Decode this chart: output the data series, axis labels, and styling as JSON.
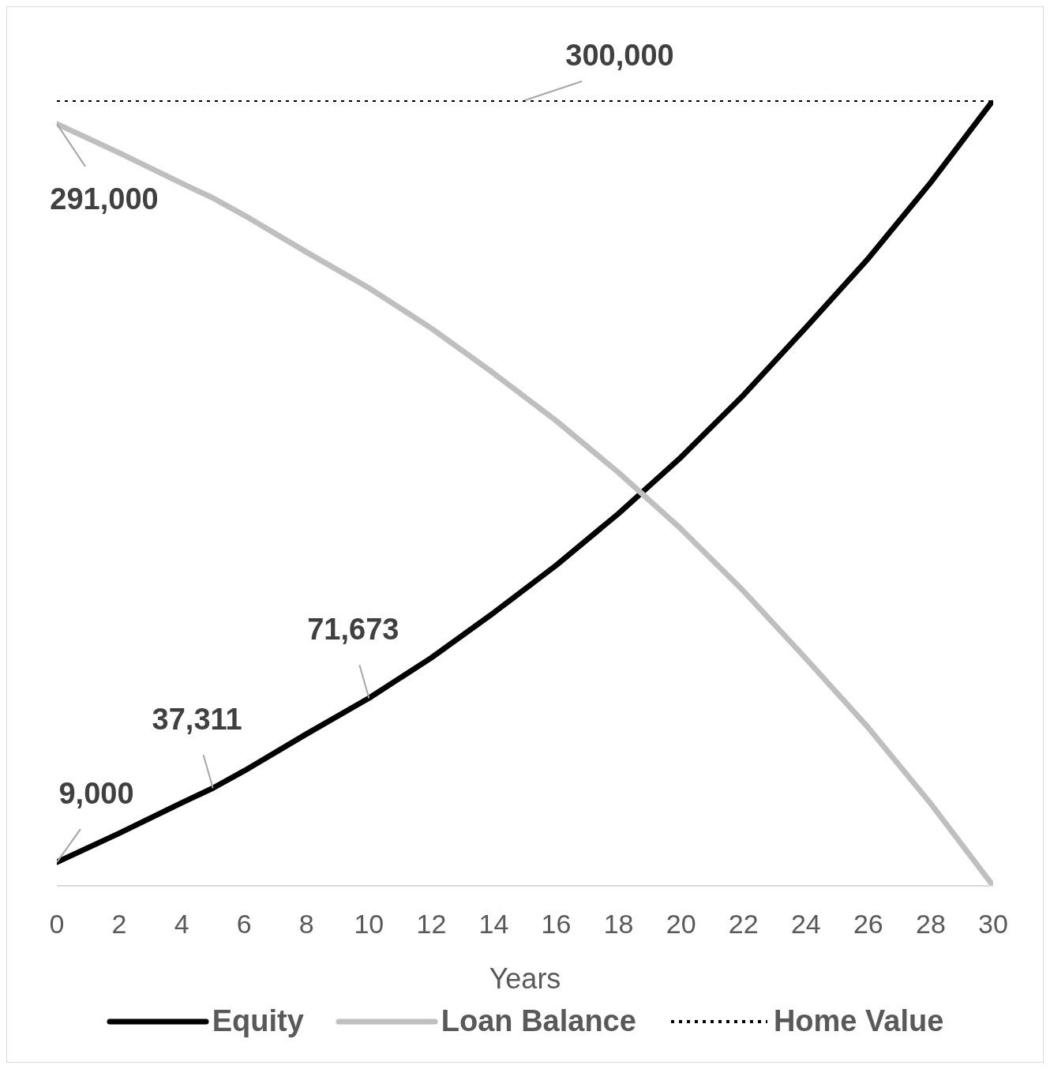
{
  "chart_data": {
    "type": "line",
    "xlabel": "Years",
    "x": [
      0,
      2,
      4,
      5,
      6,
      8,
      10,
      12,
      14,
      16,
      18,
      20,
      22,
      24,
      26,
      28,
      30
    ],
    "series": [
      {
        "name": "Equity",
        "color": "#000000",
        "line_style": "solid",
        "values": [
          9000,
          20100,
          31700,
          37311,
          43900,
          58000,
          71673,
          87100,
          104300,
          122400,
          142200,
          163700,
          187400,
          213200,
          239600,
          268600,
          300000
        ],
        "value_labels": [
          "9,000",
          null,
          null,
          "37,311",
          null,
          null,
          "71,673",
          null,
          null,
          null,
          null,
          null,
          null,
          null,
          null,
          null,
          null
        ]
      },
      {
        "name": "Loan Balance",
        "color": "#bfbfbf",
        "line_style": "solid",
        "values": [
          291000,
          279900,
          268300,
          262689,
          256100,
          242000,
          228327,
          212900,
          195700,
          177600,
          157800,
          136300,
          112600,
          86800,
          60400,
          31400,
          0
        ],
        "value_labels": [
          "291,000",
          null,
          null,
          null,
          null,
          null,
          null,
          null,
          null,
          null,
          null,
          null,
          null,
          null,
          null,
          null,
          null
        ]
      },
      {
        "name": "Home Value",
        "color": "#000000",
        "line_style": "dotted",
        "x": [
          0,
          15,
          30
        ],
        "values": [
          300000,
          300000,
          300000
        ],
        "value_labels": [
          null,
          "300,000",
          null
        ]
      }
    ],
    "xlim": [
      0,
      30
    ],
    "xticks": [
      0,
      2,
      4,
      6,
      8,
      10,
      12,
      14,
      16,
      18,
      20,
      22,
      24,
      26,
      28,
      30
    ],
    "tick_labels": "x",
    "grid": false,
    "legend": "bottom",
    "marker": "none"
  }
}
